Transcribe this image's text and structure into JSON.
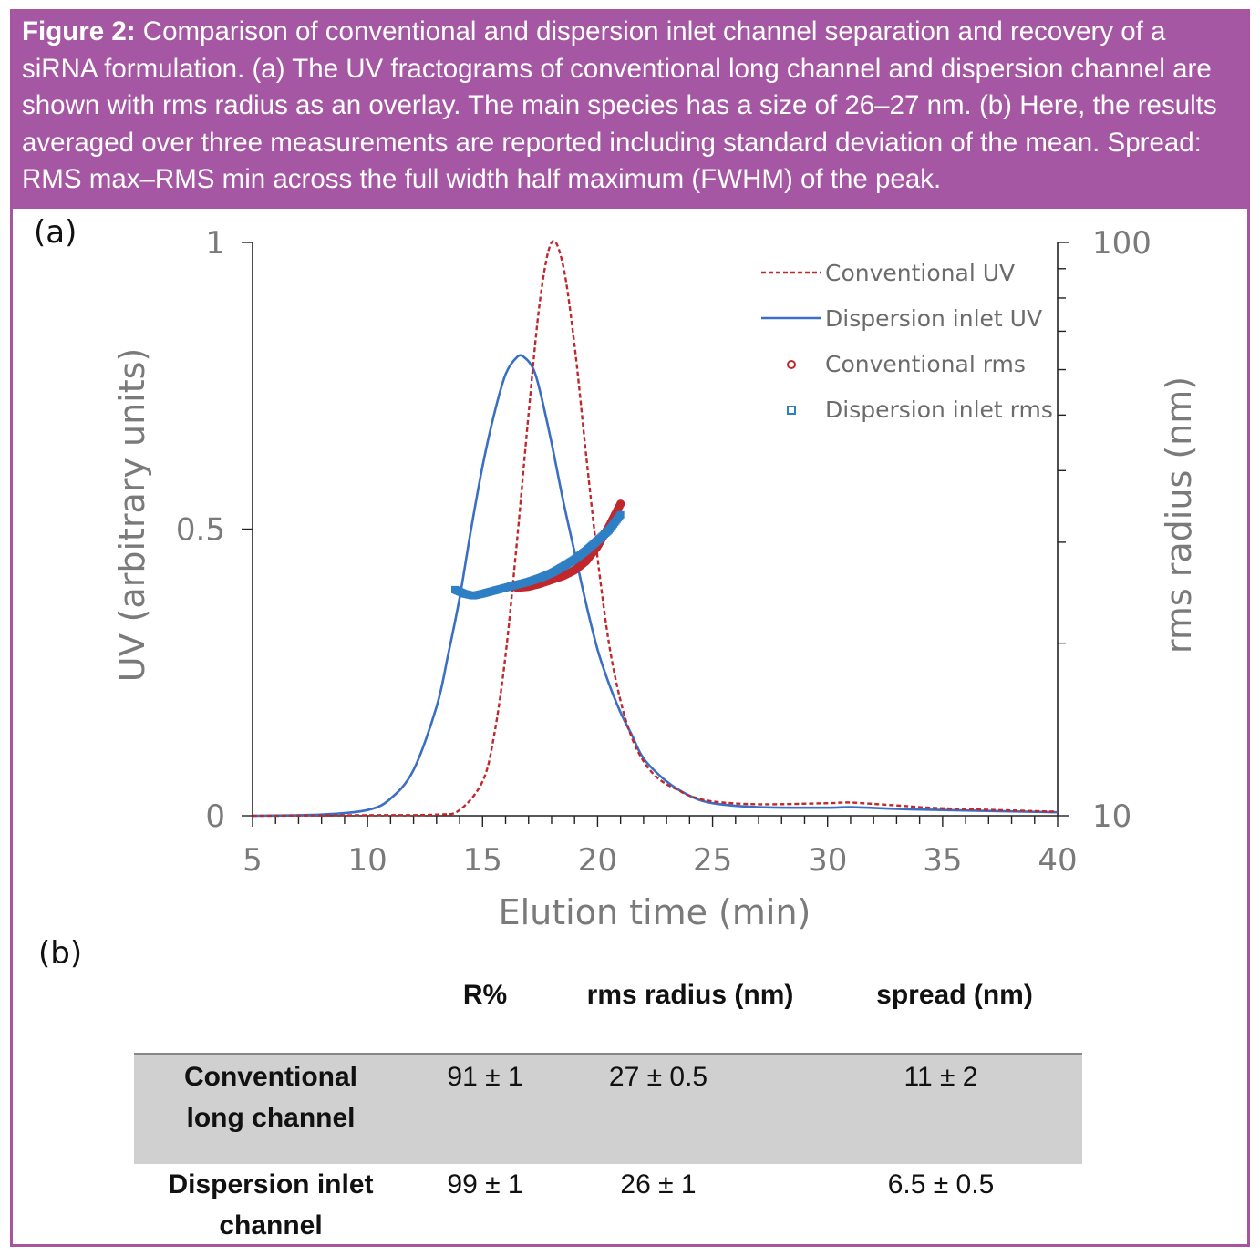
{
  "caption": {
    "bold": "Figure 2:",
    "text": " Comparison of conventional and dispersion inlet channel separation and recovery of a siRNA formulation. (a) The UV fractograms of conventional long channel and dispersion channel are shown with rms radius as an overlay. The main species has a size of 26–27 nm. (b) Here, the results averaged over three measurements are reported including standard deviation of the mean. Spread: RMS max–RMS min across the full width half maximum (FWHM) of the peak."
  },
  "panel_a_label": "(a)",
  "panel_b_label": "(b)",
  "colors": {
    "border": "#a855a0",
    "caption_bg": "#a657a3",
    "conventional": "#c0282d",
    "dispersion": "#3a6fc4",
    "dispersion_rms": "#2f7fc4",
    "axis_text": "#7a7a7a"
  },
  "chart_data": {
    "type": "line",
    "xlabel": "Elution time (min)",
    "ylabel": "UV (arbitrary units)",
    "y2label": "rms radius (nm)",
    "xlim": [
      5,
      40
    ],
    "ylim": [
      0,
      1
    ],
    "y2lim": [
      10,
      100
    ],
    "y2scale": "log",
    "x_ticks": [
      "5",
      "10",
      "15",
      "20",
      "25",
      "30",
      "35",
      "40"
    ],
    "y_ticks": [
      "0",
      "0.5",
      "1"
    ],
    "y2_ticks": [
      "10",
      "100"
    ],
    "legend_position": "top-right",
    "series": [
      {
        "name": "Conventional UV",
        "style": "dashed",
        "axis": "left",
        "x": [
          5,
          10,
          13,
          14,
          15,
          15.5,
          16,
          16.5,
          17,
          17.5,
          18,
          18.5,
          19,
          19.5,
          20,
          20.5,
          21,
          21.5,
          22,
          22.5,
          23,
          23.5,
          24,
          25,
          27,
          30,
          31,
          33,
          35,
          40
        ],
        "y": [
          0,
          0.001,
          0.002,
          0.01,
          0.06,
          0.14,
          0.28,
          0.48,
          0.7,
          0.9,
          1.0,
          0.96,
          0.82,
          0.63,
          0.45,
          0.3,
          0.2,
          0.135,
          0.095,
          0.07,
          0.055,
          0.045,
          0.035,
          0.025,
          0.02,
          0.022,
          0.023,
          0.018,
          0.013,
          0.007
        ]
      },
      {
        "name": "Dispersion inlet UV",
        "style": "solid",
        "axis": "left",
        "x": [
          5,
          8,
          10,
          11,
          12,
          13,
          13.5,
          14,
          14.5,
          15,
          15.5,
          16,
          16.5,
          16.8,
          17.2,
          17.5,
          18,
          18.5,
          19,
          19.5,
          20,
          20.5,
          21,
          21.5,
          22,
          23,
          24,
          25,
          27,
          30,
          31,
          33,
          35,
          40
        ],
        "y": [
          0,
          0.002,
          0.01,
          0.03,
          0.08,
          0.19,
          0.28,
          0.38,
          0.5,
          0.61,
          0.7,
          0.77,
          0.8,
          0.8,
          0.78,
          0.74,
          0.65,
          0.55,
          0.46,
          0.37,
          0.29,
          0.23,
          0.18,
          0.14,
          0.1,
          0.06,
          0.035,
          0.022,
          0.015,
          0.014,
          0.015,
          0.012,
          0.01,
          0.006
        ]
      },
      {
        "name": "Conventional rms",
        "style": "markers-circle",
        "axis": "right",
        "x": [
          16.2,
          16.5,
          17.0,
          17.5,
          18.0,
          18.5,
          19.0,
          19.5,
          20.0,
          20.5,
          21.0
        ],
        "y": [
          25.2,
          25.0,
          25.1,
          25.4,
          25.8,
          26.2,
          26.8,
          27.8,
          29.5,
          32.0,
          35.0
        ]
      },
      {
        "name": "Dispersion inlet rms",
        "style": "markers-square",
        "axis": "right",
        "x": [
          13.8,
          14.2,
          14.6,
          15.0,
          15.5,
          16.0,
          16.5,
          17.0,
          17.5,
          18.0,
          18.5,
          19.0,
          19.5,
          20.0,
          20.5,
          21.0
        ],
        "y": [
          24.8,
          24.4,
          24.2,
          24.4,
          24.7,
          25.0,
          25.3,
          25.6,
          26.0,
          26.5,
          27.2,
          28.0,
          29.0,
          30.2,
          31.5,
          33.5
        ]
      }
    ]
  },
  "table": {
    "headers": [
      "R%",
      "rms radius (nm)",
      "spread (nm)"
    ],
    "rows": [
      {
        "label_line1": "Conventional",
        "label_line2": "long channel",
        "r": "91 ± 1",
        "rms": "27 ± 0.5",
        "spread": "11 ± 2"
      },
      {
        "label_line1": "Dispersion inlet",
        "label_line2": "channel",
        "r": "99 ± 1",
        "rms": "26 ± 1",
        "spread": "6.5 ± 0.5"
      }
    ]
  }
}
